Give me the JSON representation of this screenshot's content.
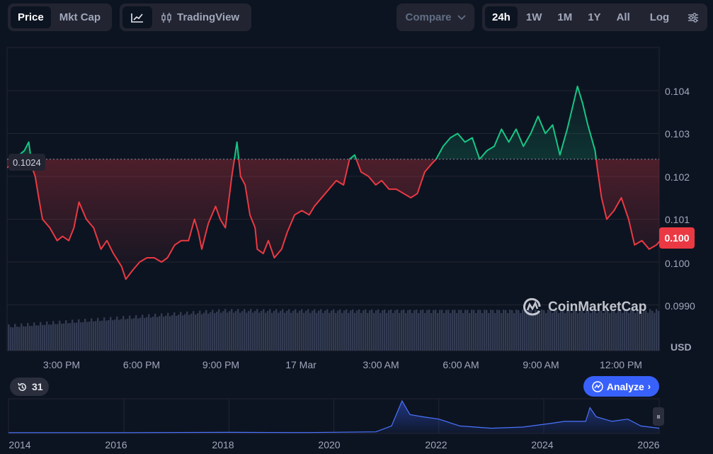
{
  "toolbar": {
    "price_label": "Price",
    "mktcap_label": "Mkt Cap",
    "tradingview_label": "TradingView",
    "compare_label": "Compare",
    "ranges": [
      "24h",
      "1W",
      "1M",
      "1Y",
      "All"
    ],
    "active_range": "24h",
    "log_label": "Log"
  },
  "axis": {
    "currency": "USD"
  },
  "badges": {
    "open_price": "0.1024",
    "current_price": "0.100",
    "history_count": "31",
    "analyze_label": "Analyze",
    "watermark": "CoinMarketCap"
  },
  "colors": {
    "up": "#16c784",
    "down": "#ea3943",
    "accent": "#3861fb",
    "background": "#0d1421"
  },
  "chart_data": [
    {
      "type": "line",
      "title": "",
      "y_unit": "USD",
      "baseline": 0.1024,
      "ylim": [
        0.0984,
        0.1047
      ],
      "y_ticks": [
        "0.104",
        "0.103",
        "0.102",
        "0.101",
        "0.100",
        "0.0990"
      ],
      "x_ticks": [
        "3:00 PM",
        "6:00 PM",
        "9:00 PM",
        "17 Mar",
        "3:00 AM",
        "6:00 AM",
        "9:00 AM",
        "12:00 PM"
      ],
      "x_range_hours": [
        -1.66,
        22.45
      ],
      "series": [
        {
          "values": [
            [
              -1.66,
              0.1022
            ],
            [
              -1.46,
              0.1023
            ],
            [
              -1.21,
              0.1025
            ],
            [
              -1.02,
              0.1026
            ],
            [
              -0.86,
              0.1028
            ],
            [
              -0.73,
              0.1022
            ],
            [
              -0.62,
              0.102
            ],
            [
              -0.49,
              0.1015
            ],
            [
              -0.35,
              0.101
            ],
            [
              -0.08,
              0.1008
            ],
            [
              0.19,
              0.1005
            ],
            [
              0.39,
              0.1006
            ],
            [
              0.62,
              0.1005
            ],
            [
              0.81,
              0.1008
            ],
            [
              1.0,
              0.1014
            ],
            [
              1.27,
              0.101
            ],
            [
              1.54,
              0.1008
            ],
            [
              1.81,
              0.1003
            ],
            [
              2.03,
              0.1005
            ],
            [
              2.27,
              0.1002
            ],
            [
              2.57,
              0.0999
            ],
            [
              2.73,
              0.0996
            ],
            [
              2.97,
              0.0998
            ],
            [
              3.24,
              0.1
            ],
            [
              3.51,
              0.1001
            ],
            [
              3.78,
              0.1001
            ],
            [
              4.05,
              0.1
            ],
            [
              4.27,
              0.1001
            ],
            [
              4.54,
              0.1004
            ],
            [
              4.78,
              0.1005
            ],
            [
              5.05,
              0.1005
            ],
            [
              5.27,
              0.101
            ],
            [
              5.41,
              0.1007
            ],
            [
              5.54,
              0.1003
            ],
            [
              5.78,
              0.1009
            ],
            [
              6.05,
              0.1013
            ],
            [
              6.22,
              0.101
            ],
            [
              6.41,
              0.1008
            ],
            [
              6.65,
              0.102
            ],
            [
              6.84,
              0.1028
            ],
            [
              6.97,
              0.102
            ],
            [
              7.14,
              0.1018
            ],
            [
              7.32,
              0.1011
            ],
            [
              7.51,
              0.1008
            ],
            [
              7.59,
              0.1003
            ],
            [
              7.81,
              0.1002
            ],
            [
              8.0,
              0.1005
            ],
            [
              8.22,
              0.1001
            ],
            [
              8.49,
              0.1003
            ],
            [
              8.7,
              0.1007
            ],
            [
              8.97,
              0.1011
            ],
            [
              9.24,
              0.1012
            ],
            [
              9.51,
              0.1011
            ],
            [
              9.7,
              0.1013
            ],
            [
              9.97,
              0.1015
            ],
            [
              10.24,
              0.1017
            ],
            [
              10.51,
              0.1019
            ],
            [
              10.78,
              0.1018
            ],
            [
              11.0,
              0.1024
            ],
            [
              11.19,
              0.1025
            ],
            [
              11.43,
              0.1021
            ],
            [
              11.7,
              0.102
            ],
            [
              11.97,
              0.1018
            ],
            [
              12.19,
              0.1019
            ],
            [
              12.46,
              0.1017
            ],
            [
              12.73,
              0.1017
            ],
            [
              13.0,
              0.1016
            ],
            [
              13.27,
              0.1015
            ],
            [
              13.51,
              0.1016
            ],
            [
              13.78,
              0.1021
            ],
            [
              14.05,
              0.1023
            ],
            [
              14.2,
              0.1024
            ],
            [
              14.46,
              0.1027
            ],
            [
              14.73,
              0.1029
            ],
            [
              15.0,
              0.103
            ],
            [
              15.27,
              0.1028
            ],
            [
              15.54,
              0.1029
            ],
            [
              15.81,
              0.1024
            ],
            [
              16.08,
              0.1026
            ],
            [
              16.35,
              0.1027
            ],
            [
              16.62,
              0.1031
            ],
            [
              16.89,
              0.1028
            ],
            [
              17.16,
              0.1031
            ],
            [
              17.43,
              0.1027
            ],
            [
              17.7,
              0.103
            ],
            [
              17.97,
              0.1034
            ],
            [
              18.24,
              0.103
            ],
            [
              18.51,
              0.1032
            ],
            [
              18.78,
              0.1025
            ],
            [
              19.05,
              0.1031
            ],
            [
              19.24,
              0.1036
            ],
            [
              19.43,
              0.1041
            ],
            [
              19.62,
              0.1037
            ],
            [
              19.81,
              0.1032
            ],
            [
              20.08,
              0.1026
            ],
            [
              20.16,
              0.1022
            ],
            [
              20.32,
              0.1015
            ],
            [
              20.51,
              0.101
            ],
            [
              20.78,
              0.1012
            ],
            [
              21.05,
              0.1015
            ],
            [
              21.32,
              0.101
            ],
            [
              21.54,
              0.1004
            ],
            [
              21.81,
              0.1005
            ],
            [
              22.08,
              0.1003
            ],
            [
              22.35,
              0.1004
            ],
            [
              22.62,
              0.1006
            ],
            [
              22.89,
              0.1004
            ],
            [
              23.16,
              0.0999
            ],
            [
              23.3,
              0.0996
            ],
            [
              23.51,
              0.1001
            ],
            [
              23.78,
              0.1001
            ],
            [
              24.05,
              0.1002
            ],
            [
              24.32,
              0.1
            ],
            [
              24.59,
              0.1001
            ],
            [
              24.86,
              0.1003
            ],
            [
              25.13,
              0.1006
            ],
            [
              25.4,
              0.1009
            ],
            [
              25.67,
              0.1008
            ],
            [
              25.94,
              0.1006
            ]
          ]
        }
      ]
    },
    {
      "type": "area",
      "title": "",
      "x_ticks": [
        "2014",
        "2016",
        "2018",
        "2020",
        "2022",
        "2024",
        "2026"
      ],
      "series": [
        {
          "values": [
            [
              2013.8,
              0.0005
            ],
            [
              2016.0,
              0.0006
            ],
            [
              2018.0,
              0.002
            ],
            [
              2019.5,
              0.001
            ],
            [
              2020.8,
              0.004
            ],
            [
              2021.1,
              0.03
            ],
            [
              2021.3,
              0.14
            ],
            [
              2021.45,
              0.08
            ],
            [
              2021.7,
              0.07
            ],
            [
              2022.0,
              0.06
            ],
            [
              2022.4,
              0.03
            ],
            [
              2023.0,
              0.02
            ],
            [
              2023.6,
              0.025
            ],
            [
              2024.1,
              0.04
            ],
            [
              2024.4,
              0.05
            ],
            [
              2024.8,
              0.05
            ],
            [
              2024.88,
              0.11
            ],
            [
              2025.0,
              0.07
            ],
            [
              2025.3,
              0.05
            ],
            [
              2025.6,
              0.06
            ],
            [
              2025.85,
              0.03
            ],
            [
              2026.2,
              0.02
            ]
          ]
        }
      ]
    }
  ]
}
